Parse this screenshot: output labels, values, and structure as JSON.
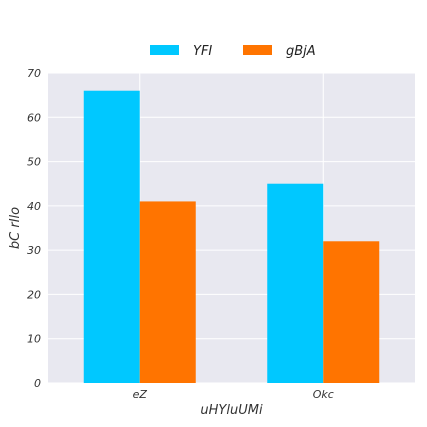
{
  "chart_data": {
    "type": "bar",
    "title": "",
    "xlabel": "uHYluUMi",
    "ylabel": "bC rIlo",
    "categories": [
      "eZ",
      "Okc"
    ],
    "series": [
      {
        "name": "YFI",
        "values": [
          66,
          45
        ],
        "color": "#00c8ff"
      },
      {
        "name": "gBjA",
        "values": [
          41,
          32
        ],
        "color": "#ff7400"
      }
    ],
    "ylim": [
      0,
      70
    ],
    "yticks": [
      0,
      10,
      20,
      30,
      40,
      50,
      60,
      70
    ],
    "grid": true,
    "legend_position": "top-center",
    "plot_background": "#e8e8f0",
    "grid_color": "#ffffff"
  }
}
